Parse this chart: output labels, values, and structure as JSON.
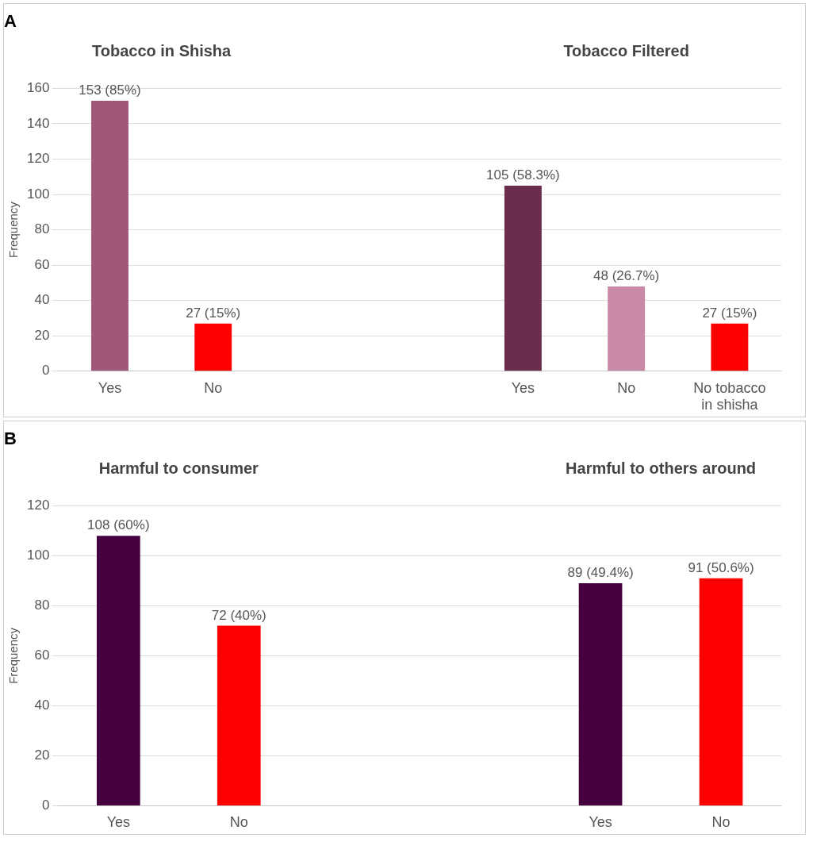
{
  "chart_data": [
    {
      "type": "bar",
      "title": "A",
      "ylabel": "Frequency",
      "categories": [
        "Yes",
        "No",
        null,
        null,
        "Yes",
        "No",
        "No tobacco in shisha"
      ],
      "values": [
        153,
        27,
        null,
        null,
        105,
        48,
        27
      ],
      "colors": [
        "#a0587a",
        "#ff0000",
        null,
        null,
        "#6b2d4e",
        "#c98aa8",
        "#ff0000"
      ],
      "value_labels": [
        "153 (85%)",
        "27 (15%)",
        null,
        null,
        "105 (58.3%)",
        "48 (26.7%)",
        "27 (15%)"
      ],
      "annotations": [
        "Tobacco in Shisha",
        "Tobacco Filtered"
      ],
      "ylim": [
        0,
        160
      ],
      "yticks": [
        0,
        20,
        40,
        60,
        80,
        100,
        120,
        140,
        160
      ],
      "grid": "y",
      "legend": false
    },
    {
      "type": "bar",
      "title": "B",
      "ylabel": "Frequency",
      "categories": [
        "Yes",
        "No",
        null,
        null,
        "Yes",
        "No"
      ],
      "values": [
        108,
        72,
        null,
        null,
        89,
        91
      ],
      "colors": [
        "#45003f",
        "#ff0000",
        null,
        null,
        "#45003f",
        "#ff0000"
      ],
      "value_labels": [
        "108 (60%)",
        "72 (40%)",
        null,
        null,
        "89 (49.4%)",
        "91 (50.6%)"
      ],
      "annotations": [
        "Harmful to consumer",
        "Harmful to others around"
      ],
      "ylim": [
        0,
        120
      ],
      "yticks": [
        0,
        20,
        40,
        60,
        80,
        100,
        120
      ],
      "grid": "y",
      "legend": false
    }
  ]
}
